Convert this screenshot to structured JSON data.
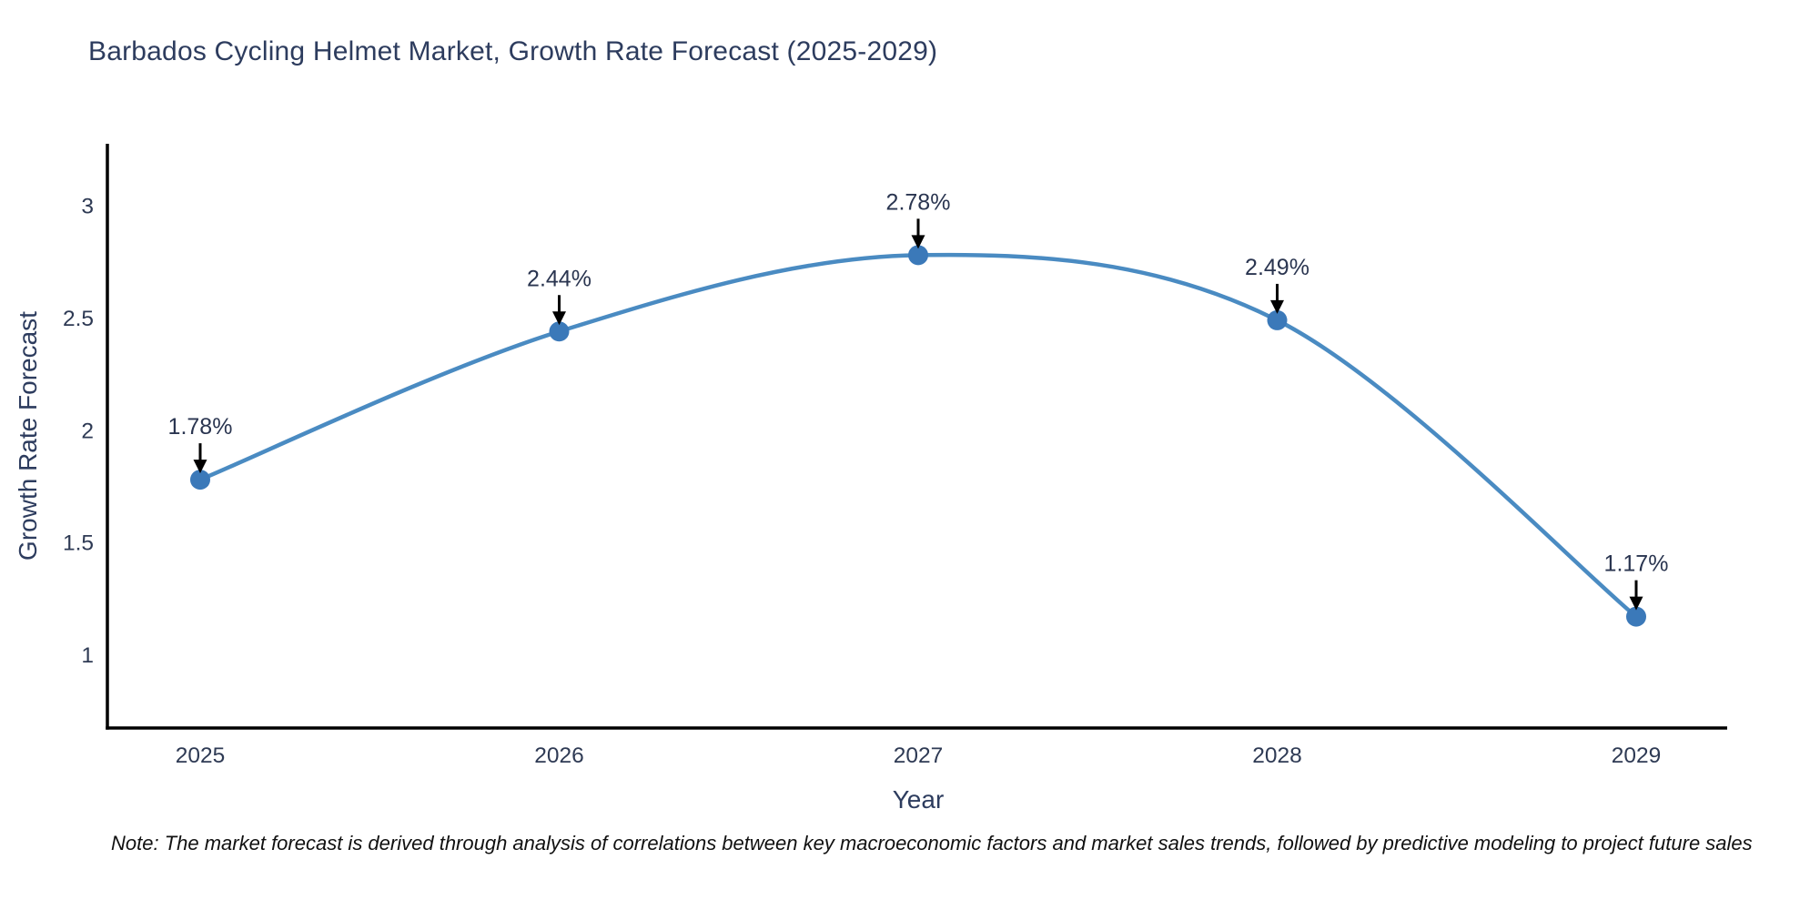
{
  "footnote": "Note: The market forecast is derived through analysis of correlations between key macroeconomic factors and market sales trends, followed by predictive modeling to project future sales",
  "chart_data": {
    "type": "line",
    "title": "Barbados Cycling Helmet Market, Growth Rate Forecast (2025-2029)",
    "xlabel": "Year",
    "ylabel": "Growth Rate Forecast",
    "x": [
      2025,
      2026,
      2027,
      2028,
      2029
    ],
    "values": [
      1.78,
      2.44,
      2.78,
      2.49,
      1.17
    ],
    "point_labels": [
      "1.78%",
      "2.44%",
      "2.78%",
      "2.49%",
      "1.17%"
    ],
    "x_tick_labels": [
      "2025",
      "2026",
      "2027",
      "2028",
      "2029"
    ],
    "y_ticks": [
      1,
      1.5,
      2,
      2.5,
      3
    ],
    "y_tick_labels": [
      "1",
      "1.5",
      "2",
      "2.5",
      "3"
    ],
    "ylim": [
      0.674,
      3.276
    ],
    "grid": false,
    "line_shape": "spline",
    "legend": "none",
    "colors": {
      "line": "#4a8bc2",
      "marker": "#3b79b9",
      "axis": "#000000",
      "annotation_arrow": "#000000",
      "title_text": "#2d3c5e",
      "tick_text": "#2e3a54",
      "note_text": "#111111"
    }
  }
}
